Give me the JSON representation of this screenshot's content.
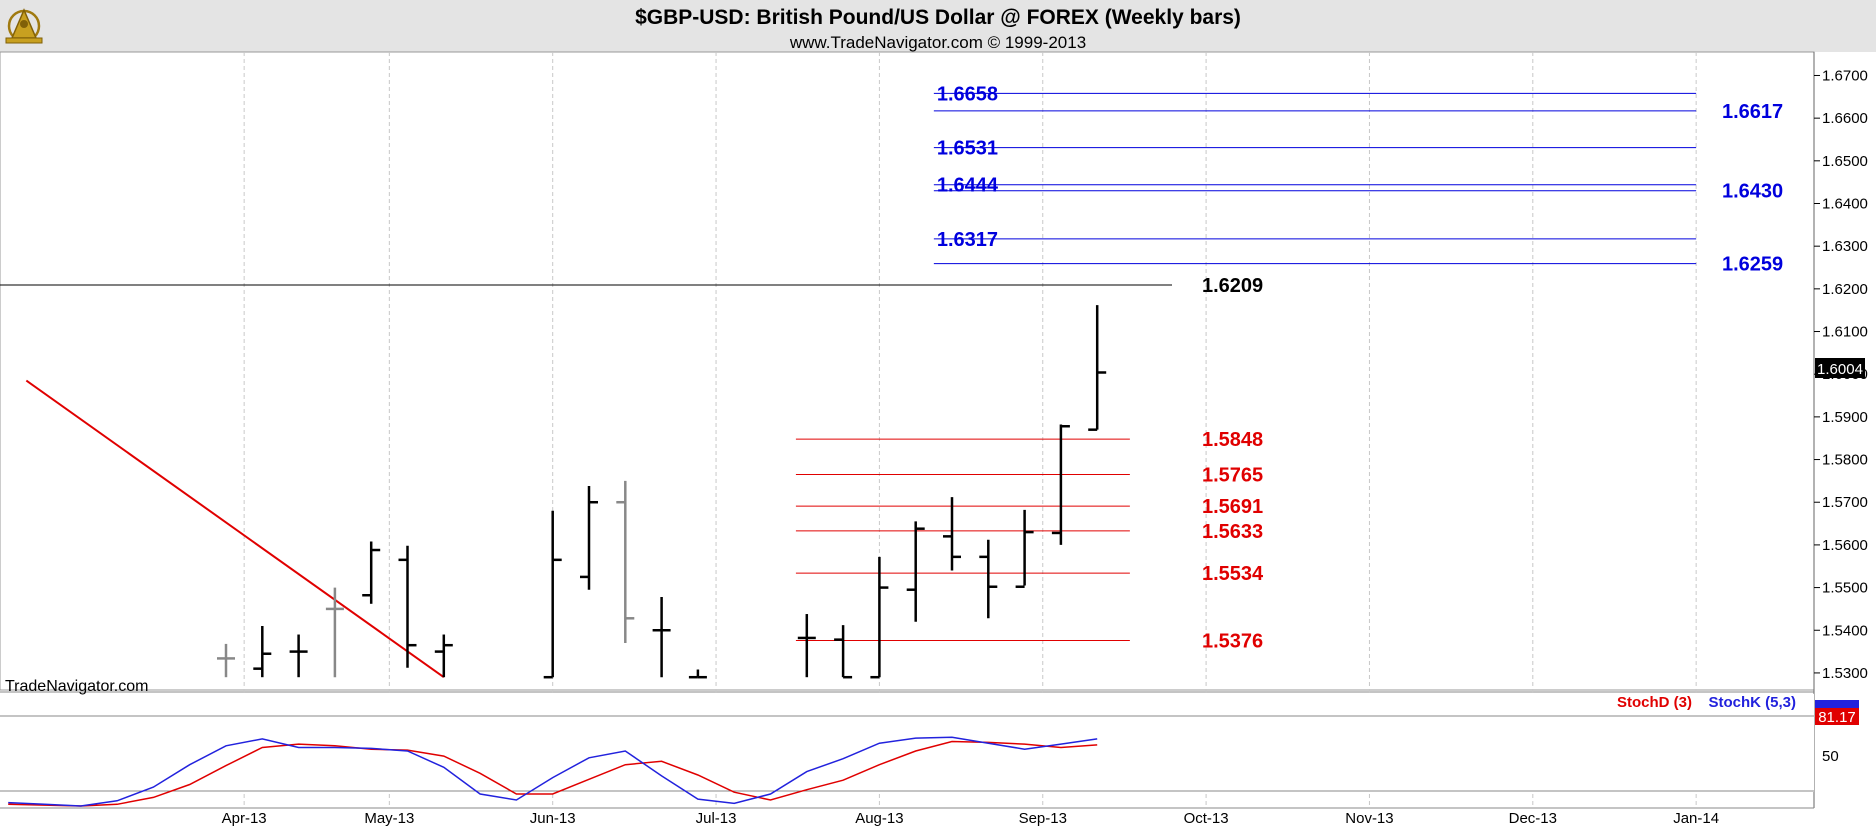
{
  "header": {
    "title": "$GBP-USD:  British Pound/US Dollar @ FOREX  (Weekly bars)",
    "subtitle": "www.TradeNavigator.com © 1999-2013",
    "logo_icon": "sextant-logo-icon"
  },
  "watermark": "TradeNavigator.com",
  "colors": {
    "bar": "#000000",
    "bar_gray": "#888888",
    "blue_level": "#0000dd",
    "red_level": "#e00000",
    "stoch_d": "#e00000",
    "stoch_k": "#2222dd",
    "header_bg": "#e4e4e4",
    "grid": "#c8c8c8"
  },
  "chart_data": {
    "type": "ohlc",
    "title": "$GBP-USD:  British Pound/US Dollar @ FOREX  (Weekly bars)",
    "ylim": [
      1.526,
      1.6755
    ],
    "y_ticks": [
      "1.6700",
      "1.6600",
      "1.6500",
      "1.6400",
      "1.6300",
      "1.6200",
      "1.6100",
      "1.6000",
      "1.5900",
      "1.5800",
      "1.5700",
      "1.5600",
      "1.5500",
      "1.5400",
      "1.5300"
    ],
    "x_ticks": [
      "Apr-13",
      "May-13",
      "Jun-13",
      "Jul-13",
      "Aug-13",
      "Sep-13",
      "Oct-13",
      "Nov-13",
      "Dec-13",
      "Jan-14"
    ],
    "x_tick_week": [
      0.5,
      4.5,
      9,
      13.5,
      18,
      22.5,
      27,
      31.5,
      36,
      40.5
    ],
    "last_price": "1.6004",
    "bars": [
      {
        "w": 0,
        "o": 1.5334,
        "h": 1.5368,
        "l": 1.529,
        "c": 1.5334,
        "color": "gray"
      },
      {
        "w": 1,
        "o": 1.531,
        "h": 1.541,
        "l": 1.529,
        "c": 1.5345,
        "color": "black"
      },
      {
        "w": 2,
        "o": 1.535,
        "h": 1.539,
        "l": 1.529,
        "c": 1.535,
        "color": "black"
      },
      {
        "w": 3,
        "o": 1.545,
        "h": 1.55,
        "l": 1.529,
        "c": 1.545,
        "color": "gray"
      },
      {
        "w": 4,
        "o": 1.5482,
        "h": 1.5608,
        "l": 1.5462,
        "c": 1.5588,
        "color": "black"
      },
      {
        "w": 5,
        "o": 1.5565,
        "h": 1.5598,
        "l": 1.5312,
        "c": 1.5365,
        "color": "black"
      },
      {
        "w": 6,
        "o": 1.535,
        "h": 1.539,
        "l": 1.529,
        "c": 1.5365,
        "color": "black"
      },
      {
        "w": 9,
        "o": 1.529,
        "h": 1.568,
        "l": 1.529,
        "c": 1.5565,
        "color": "black"
      },
      {
        "w": 10,
        "o": 1.5525,
        "h": 1.5738,
        "l": 1.5495,
        "c": 1.57,
        "color": "black"
      },
      {
        "w": 11,
        "o": 1.57,
        "h": 1.575,
        "l": 1.537,
        "c": 1.5428,
        "color": "gray"
      },
      {
        "w": 12,
        "o": 1.54,
        "h": 1.5478,
        "l": 1.529,
        "c": 1.54,
        "color": "black"
      },
      {
        "w": 13,
        "o": 1.529,
        "h": 1.5308,
        "l": 1.529,
        "c": 1.529,
        "color": "black"
      },
      {
        "w": 16,
        "o": 1.5382,
        "h": 1.5438,
        "l": 1.529,
        "c": 1.5382,
        "color": "black"
      },
      {
        "w": 17,
        "o": 1.5378,
        "h": 1.5412,
        "l": 1.529,
        "c": 1.529,
        "color": "black"
      },
      {
        "w": 18,
        "o": 1.529,
        "h": 1.5572,
        "l": 1.529,
        "c": 1.55,
        "color": "black"
      },
      {
        "w": 19,
        "o": 1.5495,
        "h": 1.5655,
        "l": 1.542,
        "c": 1.5638,
        "color": "black"
      },
      {
        "w": 20,
        "o": 1.562,
        "h": 1.5712,
        "l": 1.554,
        "c": 1.5572,
        "color": "black"
      },
      {
        "w": 21,
        "o": 1.5572,
        "h": 1.5612,
        "l": 1.5428,
        "c": 1.5502,
        "color": "black"
      },
      {
        "w": 22,
        "o": 1.5502,
        "h": 1.5682,
        "l": 1.5505,
        "c": 1.563,
        "color": "black"
      },
      {
        "w": 23,
        "o": 1.5628,
        "h": 1.5882,
        "l": 1.56,
        "c": 1.5878,
        "color": "black"
      },
      {
        "w": 24,
        "o": 1.587,
        "h": 1.6162,
        "l": 1.587,
        "c": 1.6004,
        "color": "black"
      }
    ],
    "trendline": {
      "from": {
        "w": -5.5,
        "y": 1.5985
      },
      "to": {
        "w": 6,
        "y": 1.529
      },
      "color": "red"
    },
    "resistance_line": {
      "value": "1.6209"
    },
    "blue_levels_left": [
      "1.6658",
      "1.6531",
      "1.6444",
      "1.6317"
    ],
    "blue_levels_right": [
      "1.6617",
      "1.6430",
      "1.6259"
    ],
    "red_levels": [
      "1.5848",
      "1.5765",
      "1.5691",
      "1.5633",
      "1.5534",
      "1.5376"
    ],
    "level_line_week_range": {
      "blue": [
        19.5,
        40.5
      ],
      "red": [
        15.7,
        24.9
      ]
    },
    "stochastic": {
      "ylim": [
        0,
        100
      ],
      "tick": "50",
      "legend": [
        "StochD (3)",
        "StochK (5,3)"
      ],
      "last_value": "81.17",
      "stoch_k": [
        [
          -6,
          4
        ],
        [
          -5,
          2
        ],
        [
          -4,
          0
        ],
        [
          -3,
          6
        ],
        [
          -2,
          22
        ],
        [
          -1,
          48
        ],
        [
          0,
          70
        ],
        [
          1,
          78
        ],
        [
          2,
          68
        ],
        [
          3,
          68
        ],
        [
          4,
          67
        ],
        [
          5,
          64
        ],
        [
          6,
          45
        ],
        [
          7,
          14
        ],
        [
          8,
          7
        ],
        [
          9,
          33
        ],
        [
          10,
          56
        ],
        [
          11,
          64
        ],
        [
          12,
          35
        ],
        [
          13,
          8
        ],
        [
          14,
          3
        ],
        [
          15,
          14
        ],
        [
          16,
          40
        ],
        [
          17,
          55
        ],
        [
          18,
          73
        ],
        [
          19,
          79
        ],
        [
          20,
          80
        ],
        [
          21,
          73
        ],
        [
          22,
          66
        ],
        [
          23,
          72
        ],
        [
          24,
          78
        ]
      ],
      "stoch_d": [
        [
          -6,
          2
        ],
        [
          -5,
          1
        ],
        [
          -4,
          0
        ],
        [
          -3,
          2
        ],
        [
          -2,
          10
        ],
        [
          -1,
          25
        ],
        [
          0,
          47
        ],
        [
          1,
          68
        ],
        [
          2,
          72
        ],
        [
          3,
          70
        ],
        [
          4,
          66
        ],
        [
          5,
          65
        ],
        [
          6,
          58
        ],
        [
          7,
          38
        ],
        [
          8,
          14
        ],
        [
          9,
          14
        ],
        [
          10,
          31
        ],
        [
          11,
          48
        ],
        [
          12,
          52
        ],
        [
          13,
          36
        ],
        [
          14,
          16
        ],
        [
          15,
          7
        ],
        [
          16,
          19
        ],
        [
          17,
          30
        ],
        [
          18,
          48
        ],
        [
          19,
          64
        ],
        [
          20,
          75
        ],
        [
          21,
          74
        ],
        [
          22,
          72
        ],
        [
          23,
          68
        ],
        [
          24,
          71
        ]
      ]
    }
  }
}
